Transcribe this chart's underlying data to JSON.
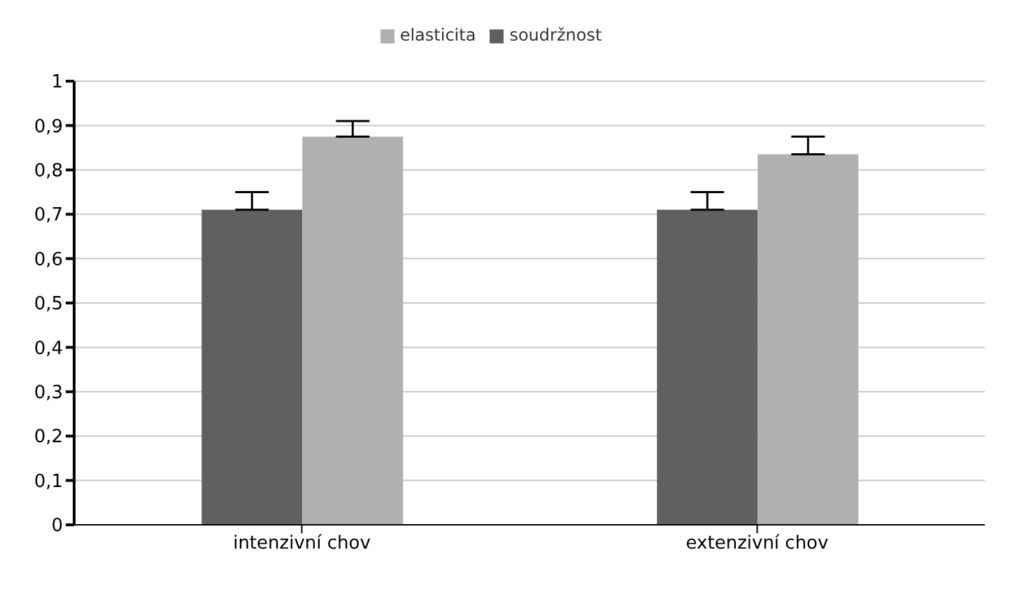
{
  "chart_data": {
    "type": "bar",
    "categories": [
      "intenzivní chov",
      "extenzivní chov"
    ],
    "series": [
      {
        "name": "soudržnost",
        "color": "#606060",
        "values": [
          0.71,
          0.71
        ],
        "errors": [
          [
            0.71,
            0.75
          ],
          [
            0.71,
            0.75
          ]
        ]
      },
      {
        "name": "elasticita",
        "color": "#b0b0b0",
        "values": [
          0.875,
          0.835
        ],
        "errors": [
          [
            0.875,
            0.91
          ],
          [
            0.835,
            0.875
          ]
        ]
      }
    ],
    "ylim": [
      0,
      1
    ],
    "yticks": [
      {
        "value": 0,
        "label": "0"
      },
      {
        "value": 0.1,
        "label": "0,1"
      },
      {
        "value": 0.2,
        "label": "0,2"
      },
      {
        "value": 0.3,
        "label": "0,3"
      },
      {
        "value": 0.4,
        "label": "0,4"
      },
      {
        "value": 0.5,
        "label": "0,5"
      },
      {
        "value": 0.6,
        "label": "0,6"
      },
      {
        "value": 0.7,
        "label": "0,7"
      },
      {
        "value": 0.8,
        "label": "0,8"
      },
      {
        "value": 0.9,
        "label": "0,9"
      },
      {
        "value": 1,
        "label": "1"
      }
    ],
    "grid": "y",
    "legend": "top"
  }
}
